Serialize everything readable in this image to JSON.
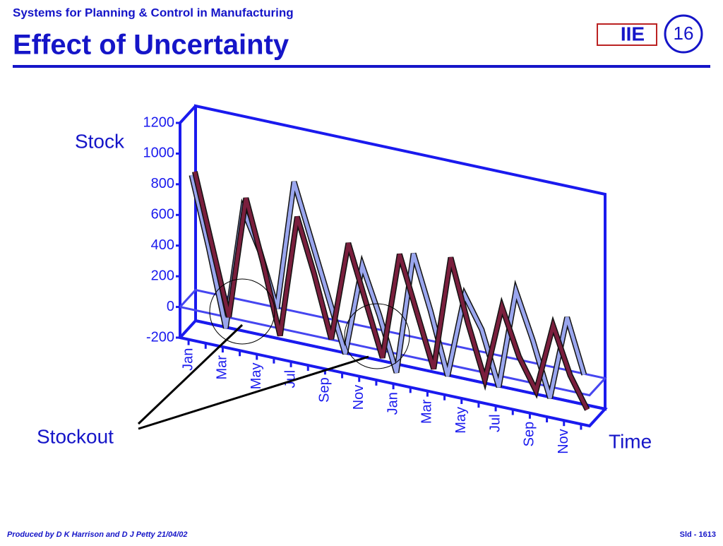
{
  "header": {
    "subtitle": "Systems for Planning & Control in Manufacturing",
    "title": "Effect of Uncertainty",
    "slide_number": "16",
    "logo": "IIE"
  },
  "footer": {
    "credit": "Produced by D K Harrison and D J Petty 21/04/02",
    "slide_id": "Sld - 1613"
  },
  "chart_data": {
    "type": "line",
    "y_label": "Stock",
    "x_label": "Time",
    "annotation": "Stockout",
    "categories": [
      "Jan",
      null,
      "Mar",
      null,
      "May",
      null,
      "Jul",
      null,
      "Sep",
      null,
      "Nov",
      null,
      "Jan",
      null,
      "Mar",
      null,
      "May",
      null,
      "Jul",
      null,
      "Sep",
      null,
      "Nov",
      null
    ],
    "ylim": [
      -200,
      1200
    ],
    "yticks": [
      -200,
      0,
      200,
      400,
      600,
      800,
      1000,
      1200
    ],
    "series": [
      {
        "color": "#9aa6ee",
        "values": [
          850,
          400,
          -100,
          700,
          450,
          100,
          950,
          600,
          250,
          -100,
          500,
          200,
          -150,
          650,
          300,
          -100,
          450,
          250,
          -100,
          550,
          250,
          -100,
          450,
          100
        ]
      },
      {
        "color": "#7a1f3d",
        "values": [
          850,
          400,
          -50,
          750,
          350,
          -100,
          700,
          350,
          -50,
          600,
          250,
          -100,
          600,
          250,
          -100,
          650,
          250,
          -100,
          400,
          100,
          -100,
          350,
          50,
          -150
        ]
      }
    ]
  }
}
